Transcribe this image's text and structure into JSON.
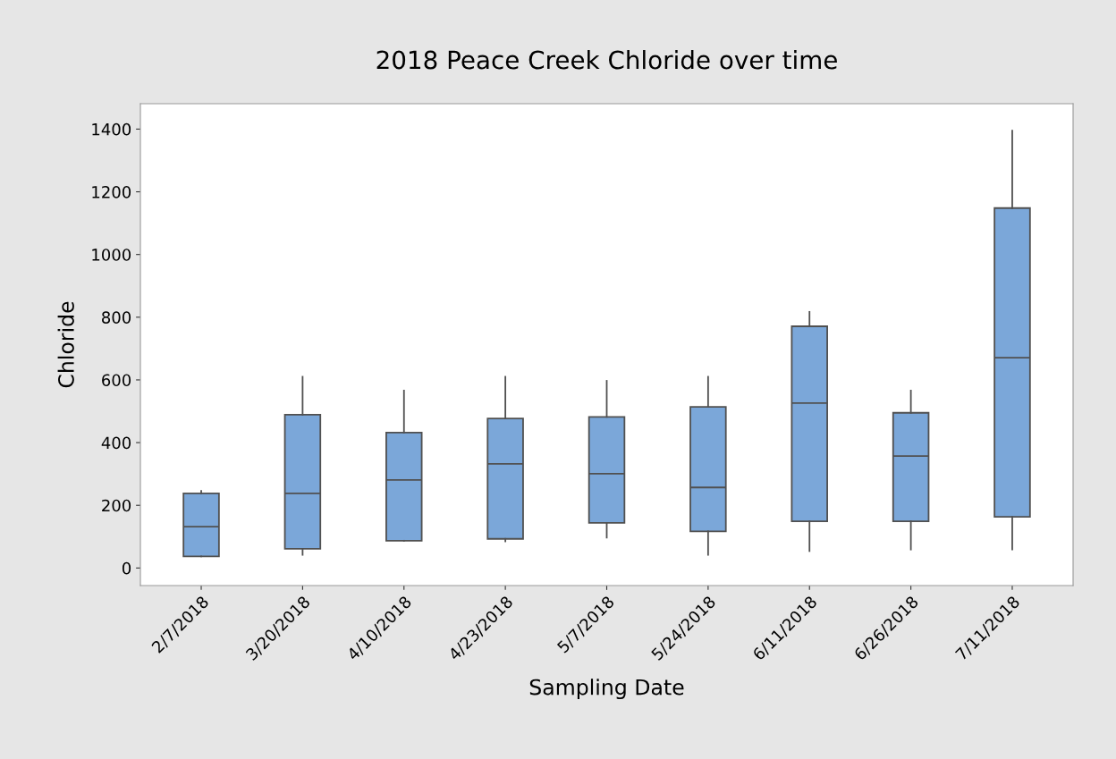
{
  "chart_data": {
    "type": "box",
    "title": "2018 Peace Creek Chloride over time",
    "xlabel": "Sampling Date",
    "ylabel": "Chloride",
    "categories": [
      "2/7/2018",
      "3/20/2018",
      "4/10/2018",
      "4/23/2018",
      "5/7/2018",
      "5/24/2018",
      "6/11/2018",
      "6/26/2018",
      "7/11/2018"
    ],
    "boxes": [
      {
        "low": 37,
        "q1": 37,
        "median": 132,
        "q3": 238,
        "high": 246
      },
      {
        "low": 42,
        "q1": 61,
        "median": 238,
        "q3": 489,
        "high": 610
      },
      {
        "low": 87,
        "q1": 87,
        "median": 281,
        "q3": 432,
        "high": 566
      },
      {
        "low": 85,
        "q1": 93,
        "median": 332,
        "q3": 477,
        "high": 610
      },
      {
        "low": 97,
        "q1": 144,
        "median": 301,
        "q3": 482,
        "high": 597
      },
      {
        "low": 42,
        "q1": 117,
        "median": 257,
        "q3": 514,
        "high": 610
      },
      {
        "low": 54,
        "q1": 149,
        "median": 526,
        "q3": 771,
        "high": 817
      },
      {
        "low": 59,
        "q1": 149,
        "median": 357,
        "q3": 495,
        "high": 566
      },
      {
        "low": 59,
        "q1": 163,
        "median": 671,
        "q3": 1148,
        "high": 1395
      }
    ],
    "color": "#7ba7d9",
    "ylim": [
      -56,
      1481
    ],
    "yticks": [
      0,
      200,
      400,
      600,
      800,
      1000,
      1200,
      1400
    ],
    "grid": false
  }
}
